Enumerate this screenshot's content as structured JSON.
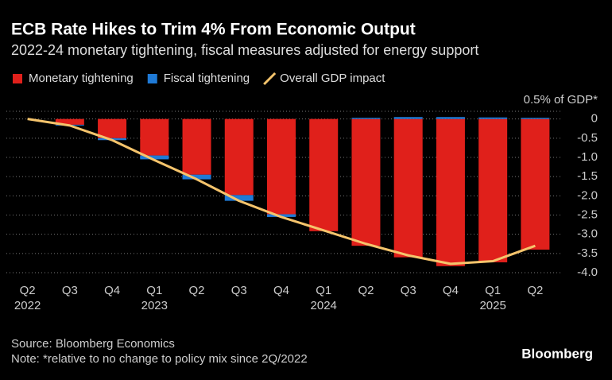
{
  "chart_data": {
    "type": "bar",
    "title": "ECB Rate Hikes to Trim 4% From Economic Output",
    "subtitle": "2022-24 monetary tightening, fiscal measures adjusted for energy support",
    "y_label": "0.5% of GDP*",
    "categories": [
      "Q2",
      "Q3",
      "Q4",
      "Q1",
      "Q2",
      "Q3",
      "Q4",
      "Q1",
      "Q2",
      "Q3",
      "Q4",
      "Q1",
      "Q2"
    ],
    "years": [
      "2022",
      null,
      null,
      "2023",
      null,
      null,
      null,
      "2024",
      null,
      null,
      null,
      "2025",
      null
    ],
    "series": [
      {
        "name": "Monetary tightening",
        "color": "#e0201b",
        "mark": "bar",
        "values": [
          0,
          -0.15,
          -0.5,
          -0.95,
          -1.45,
          -1.98,
          -2.48,
          -2.92,
          -3.3,
          -3.6,
          -3.83,
          -3.73,
          -3.4
        ]
      },
      {
        "name": "Fiscal tightening",
        "color": "#1f7ad6",
        "mark": "bar",
        "values": [
          0,
          -0.02,
          -0.05,
          -0.1,
          -0.12,
          -0.15,
          -0.07,
          0,
          0.03,
          0.05,
          0.05,
          0.04,
          0.03
        ]
      },
      {
        "name": "Overall GDP impact",
        "color": "#f5c46c",
        "mark": "line",
        "values": [
          0,
          -0.17,
          -0.55,
          -1.07,
          -1.57,
          -2.13,
          -2.55,
          -2.9,
          -3.25,
          -3.55,
          -3.77,
          -3.7,
          -3.3
        ]
      }
    ],
    "ylim": [
      0.2,
      -4.0
    ],
    "yticks": [
      0,
      -0.5,
      {
        "value": -1,
        "label": "-1.0"
      },
      -1.5,
      {
        "value": -2,
        "label": "-2.0"
      },
      -2.5,
      {
        "value": -3,
        "label": "-3.0"
      },
      -3.5,
      {
        "value": -4,
        "label": "-4.0"
      }
    ],
    "grid": true,
    "source": "Source: Bloomberg Economics",
    "note": "Note: *relative to no change to policy mix since 2Q/2022",
    "brand": "Bloomberg"
  }
}
